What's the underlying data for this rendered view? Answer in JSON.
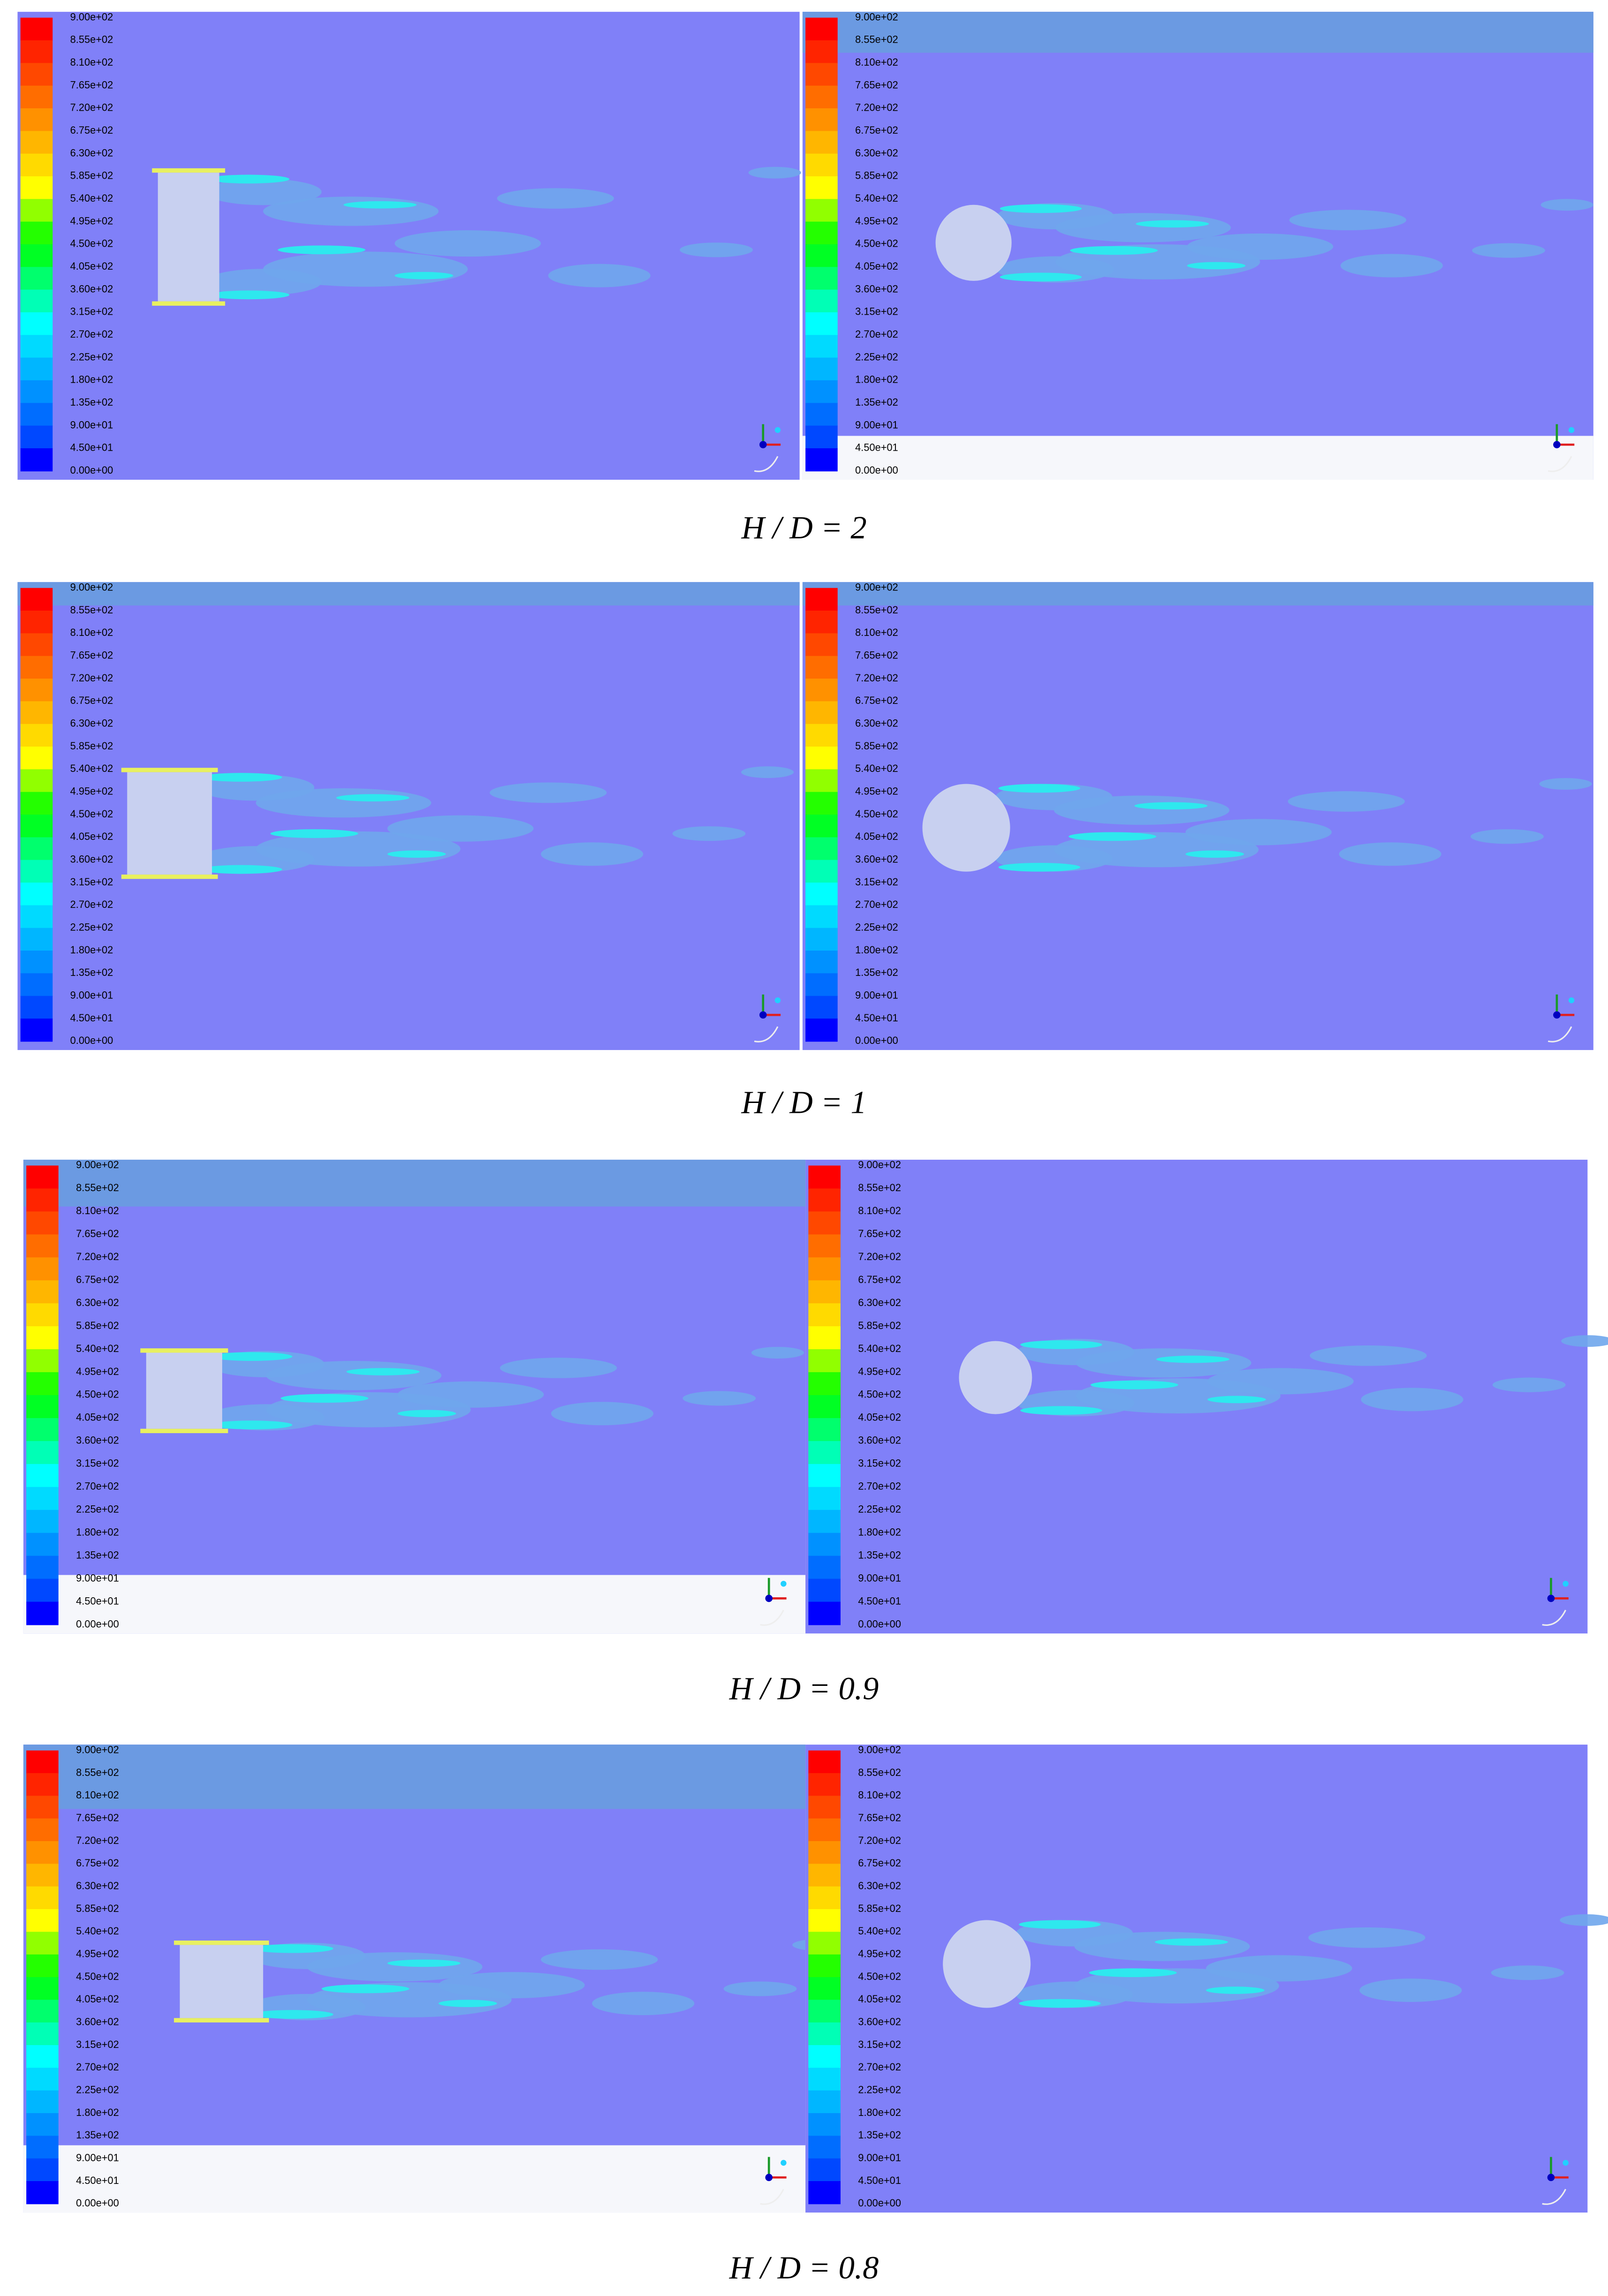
{
  "colorbar_levels": [
    "9.00e+02",
    "8.55e+02",
    "8.10e+02",
    "7.65e+02",
    "7.20e+02",
    "6.75e+02",
    "6.30e+02",
    "5.85e+02",
    "5.40e+02",
    "4.95e+02",
    "4.50e+02",
    "4.05e+02",
    "3.60e+02",
    "3.15e+02",
    "2.70e+02",
    "2.25e+02",
    "1.80e+02",
    "1.35e+02",
    "9.00e+01",
    "4.50e+01",
    "0.00e+00"
  ],
  "captions": [
    "H / D  = 2",
    "H / D  = 1",
    "H / D  = 0.9",
    "H / D  = 0.8"
  ]
}
